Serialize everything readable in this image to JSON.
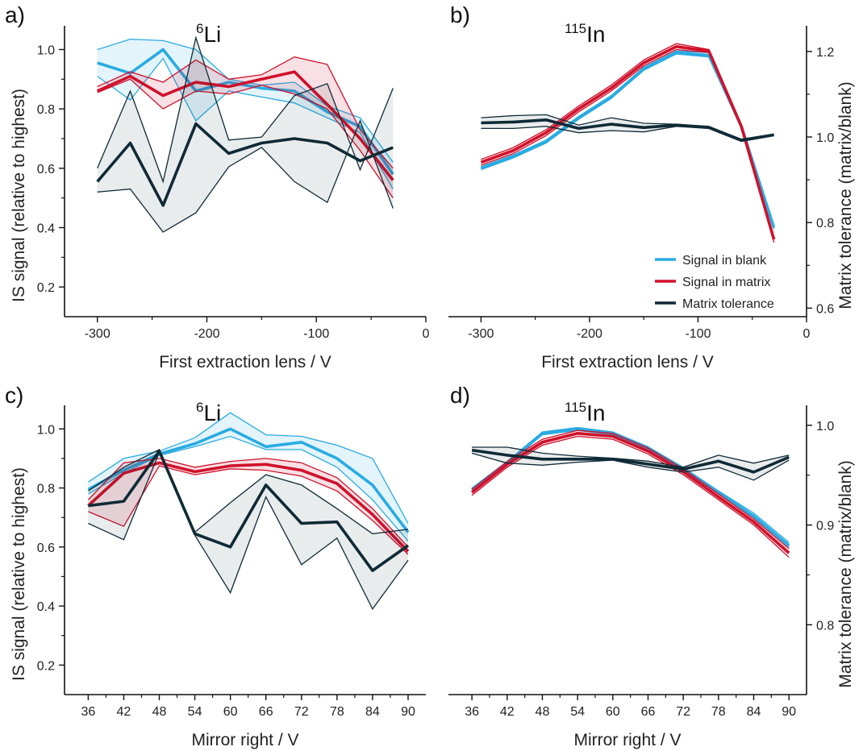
{
  "colors": {
    "blank": "#29abe2",
    "matrix": "#d0112b",
    "tolerance": "#0f2a36"
  },
  "chart_data": [
    {
      "id": "a",
      "type": "line",
      "panel_label": "a)",
      "title_sup": "6",
      "title_main": "Li",
      "xlabel": "First extraction lens / V",
      "ylabel": "IS signal (relative to highest)",
      "xlim": [
        -330,
        0
      ],
      "ylim": [
        0.1,
        1.08
      ],
      "xticks": [
        -300,
        -200,
        -100,
        0
      ],
      "yticks": [
        0.2,
        0.4,
        0.6,
        0.8,
        1.0
      ],
      "x": [
        -300,
        -270,
        -240,
        -210,
        -180,
        -150,
        -120,
        -90,
        -60,
        -30
      ],
      "series": [
        {
          "name": "Signal in blank",
          "key": "blank",
          "axis": "left",
          "mean": [
            0.955,
            0.92,
            1.0,
            0.86,
            0.89,
            0.87,
            0.86,
            0.79,
            0.74,
            0.58
          ],
          "band_low": [
            0.91,
            0.83,
            0.97,
            0.76,
            0.86,
            0.84,
            0.82,
            0.77,
            0.72,
            0.53
          ],
          "band_high": [
            1.0,
            1.035,
            1.03,
            1.0,
            0.9,
            0.88,
            0.89,
            0.81,
            0.77,
            0.62
          ]
        },
        {
          "name": "Signal in matrix",
          "key": "matrix",
          "axis": "left",
          "mean": [
            0.86,
            0.91,
            0.845,
            0.89,
            0.875,
            0.9,
            0.925,
            0.815,
            0.7,
            0.56
          ],
          "band_low": [
            0.855,
            0.9,
            0.8,
            0.86,
            0.85,
            0.88,
            0.85,
            0.8,
            0.66,
            0.5
          ],
          "band_high": [
            0.875,
            0.925,
            0.89,
            0.965,
            0.9,
            0.915,
            0.975,
            0.95,
            0.73,
            0.6
          ]
        },
        {
          "name": "Matrix tolerance",
          "key": "tolerance",
          "axis": "left",
          "mean": [
            0.555,
            0.685,
            0.475,
            0.75,
            0.65,
            0.685,
            0.7,
            0.685,
            0.625,
            0.67
          ],
          "band_low": [
            0.52,
            0.53,
            0.385,
            0.45,
            0.605,
            0.67,
            0.555,
            0.485,
            0.76,
            0.465
          ],
          "band_high": [
            0.6,
            0.86,
            0.555,
            1.04,
            0.695,
            0.705,
            0.845,
            0.885,
            0.595,
            0.87
          ]
        }
      ]
    },
    {
      "id": "b",
      "type": "line",
      "panel_label": "b)",
      "title_sup": "115",
      "title_main": "In",
      "xlabel": "First extraction lens / V",
      "ylabel": "Matrix tolerance (matrix/blank)",
      "xlim": [
        -330,
        0
      ],
      "ylim": [
        0.58,
        1.26
      ],
      "xticks": [
        -300,
        -200,
        -100,
        0
      ],
      "yticks": [
        0.6,
        0.8,
        1.0,
        1.2
      ],
      "left_ylim": [
        0.1,
        1.08
      ],
      "x": [
        -300,
        -270,
        -240,
        -210,
        -180,
        -150,
        -120,
        -90,
        -60,
        -30
      ],
      "legend_position": "lower-right",
      "series": [
        {
          "name": "Signal in blank",
          "key": "blank",
          "axis": "left",
          "mean": [
            0.6,
            0.64,
            0.69,
            0.77,
            0.84,
            0.935,
            0.99,
            0.98,
            0.74,
            0.4
          ],
          "band_low": [
            0.595,
            0.635,
            0.685,
            0.765,
            0.835,
            0.93,
            0.985,
            0.975,
            0.735,
            0.395
          ],
          "band_high": [
            0.605,
            0.645,
            0.695,
            0.775,
            0.845,
            0.94,
            0.995,
            0.99,
            0.745,
            0.405
          ]
        },
        {
          "name": "Signal in matrix",
          "key": "matrix",
          "axis": "left",
          "mean": [
            0.62,
            0.66,
            0.72,
            0.8,
            0.87,
            0.955,
            1.01,
            0.995,
            0.74,
            0.36
          ],
          "band_low": [
            0.61,
            0.65,
            0.71,
            0.79,
            0.86,
            0.945,
            1.0,
            0.99,
            0.735,
            0.35
          ],
          "band_high": [
            0.63,
            0.67,
            0.73,
            0.81,
            0.88,
            0.965,
            1.02,
            1.0,
            0.745,
            0.37
          ]
        },
        {
          "name": "Matrix tolerance",
          "key": "tolerance",
          "axis": "right",
          "x": [
            -300,
            -270,
            -240,
            -210,
            -180,
            -150,
            -120,
            -90,
            -60,
            -30
          ],
          "mean": [
            1.033,
            1.035,
            1.04,
            1.02,
            1.03,
            1.022,
            1.028,
            1.022,
            0.992,
            1.005
          ],
          "band_low": [
            1.02,
            1.02,
            1.025,
            1.01,
            1.015,
            1.012,
            1.025,
            1.02,
            0.99,
            1.003
          ],
          "band_high": [
            1.045,
            1.05,
            1.052,
            1.028,
            1.045,
            1.032,
            1.03,
            1.025,
            0.995,
            1.007
          ]
        }
      ]
    },
    {
      "id": "c",
      "type": "line",
      "panel_label": "c)",
      "title_sup": "6",
      "title_main": "Li",
      "xlabel": "Mirror right / V",
      "ylabel": "IS signal (relative to highest)",
      "xlim": [
        32,
        93
      ],
      "ylim": [
        0.1,
        1.08
      ],
      "xticks": [
        36,
        42,
        48,
        54,
        60,
        66,
        72,
        78,
        84,
        90
      ],
      "yticks": [
        0.2,
        0.4,
        0.6,
        0.8,
        1.0
      ],
      "x": [
        36,
        42,
        48,
        54,
        60,
        66,
        72,
        78,
        84,
        90
      ],
      "series": [
        {
          "name": "Signal in blank",
          "key": "blank",
          "axis": "left",
          "mean": [
            0.795,
            0.86,
            0.915,
            0.95,
            1.0,
            0.94,
            0.955,
            0.9,
            0.81,
            0.65
          ],
          "band_low": [
            0.78,
            0.85,
            0.91,
            0.94,
            0.975,
            0.93,
            0.93,
            0.87,
            0.76,
            0.62
          ],
          "band_high": [
            0.82,
            0.9,
            0.925,
            0.97,
            1.055,
            0.98,
            0.975,
            0.945,
            0.9,
            0.68
          ]
        },
        {
          "name": "Signal in matrix",
          "key": "matrix",
          "axis": "left",
          "mean": [
            0.74,
            0.85,
            0.885,
            0.855,
            0.875,
            0.88,
            0.86,
            0.815,
            0.71,
            0.585
          ],
          "band_low": [
            0.72,
            0.67,
            0.875,
            0.845,
            0.865,
            0.86,
            0.84,
            0.79,
            0.69,
            0.575
          ],
          "band_high": [
            0.76,
            0.885,
            0.9,
            0.87,
            0.89,
            0.9,
            0.885,
            0.835,
            0.73,
            0.6
          ]
        },
        {
          "name": "Matrix tolerance",
          "key": "tolerance",
          "axis": "left",
          "mean": [
            0.74,
            0.755,
            0.925,
            0.645,
            0.6,
            0.81,
            0.68,
            0.685,
            0.52,
            0.605
          ],
          "band_low": [
            0.68,
            0.625,
            0.92,
            0.64,
            0.445,
            0.77,
            0.54,
            0.63,
            0.39,
            0.555
          ],
          "band_high": [
            0.79,
            0.87,
            0.93,
            0.65,
            0.75,
            0.845,
            0.81,
            0.73,
            0.645,
            0.66
          ]
        }
      ]
    },
    {
      "id": "d",
      "type": "line",
      "panel_label": "d)",
      "title_sup": "115",
      "title_main": "In",
      "xlabel": "Mirror right / V",
      "ylabel": "Matrix tolerance (matrix/blank)",
      "xlim": [
        32,
        93
      ],
      "ylim": [
        0.73,
        1.02
      ],
      "xticks": [
        36,
        42,
        48,
        54,
        60,
        66,
        72,
        78,
        84,
        90
      ],
      "yticks": [
        0.8,
        0.9,
        1.0
      ],
      "left_ylim": [
        0.1,
        1.08
      ],
      "x": [
        36,
        42,
        48,
        54,
        60,
        66,
        72,
        78,
        84,
        90
      ],
      "series": [
        {
          "name": "Signal in blank",
          "key": "blank",
          "axis": "left",
          "mean": [
            0.795,
            0.885,
            0.985,
            1.0,
            0.985,
            0.935,
            0.865,
            0.785,
            0.705,
            0.605
          ],
          "band_low": [
            0.79,
            0.88,
            0.98,
            0.995,
            0.98,
            0.93,
            0.86,
            0.78,
            0.7,
            0.6
          ],
          "band_high": [
            0.8,
            0.89,
            0.99,
            1.005,
            0.99,
            0.94,
            0.87,
            0.79,
            0.715,
            0.615
          ]
        },
        {
          "name": "Signal in matrix",
          "key": "matrix",
          "axis": "left",
          "mean": [
            0.785,
            0.88,
            0.955,
            0.985,
            0.975,
            0.925,
            0.855,
            0.77,
            0.685,
            0.58
          ],
          "band_low": [
            0.775,
            0.87,
            0.945,
            0.975,
            0.965,
            0.915,
            0.845,
            0.76,
            0.675,
            0.565
          ],
          "band_high": [
            0.795,
            0.89,
            0.965,
            0.995,
            0.985,
            0.935,
            0.865,
            0.78,
            0.695,
            0.595
          ]
        },
        {
          "name": "Matrix tolerance",
          "key": "tolerance",
          "axis": "right",
          "mean": [
            0.975,
            0.97,
            0.966,
            0.966,
            0.966,
            0.961,
            0.956,
            0.964,
            0.953,
            0.968
          ],
          "band_low": [
            0.972,
            0.962,
            0.96,
            0.963,
            0.965,
            0.958,
            0.953,
            0.958,
            0.945,
            0.965
          ],
          "band_high": [
            0.978,
            0.978,
            0.972,
            0.969,
            0.967,
            0.964,
            0.958,
            0.97,
            0.962,
            0.97
          ]
        }
      ]
    }
  ],
  "legend": [
    {
      "key": "blank",
      "label": "Signal in blank"
    },
    {
      "key": "matrix",
      "label": "Signal in matrix"
    },
    {
      "key": "tolerance",
      "label": "Matrix tolerance"
    }
  ]
}
